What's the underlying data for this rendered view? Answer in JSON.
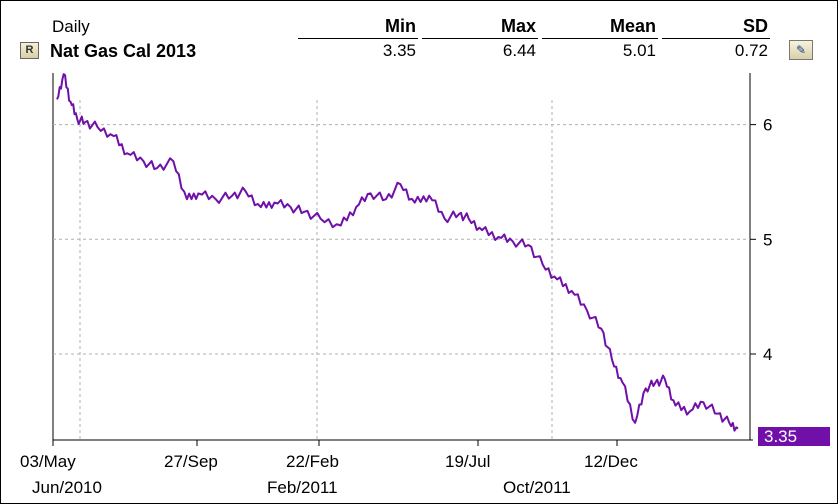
{
  "header": {
    "period": "Daily",
    "series_name": "Nat Gas Cal 2013",
    "r_button": "R",
    "stats": {
      "min_label": "Min",
      "min_value": "3.35",
      "max_label": "Max",
      "max_value": "6.44",
      "mean_label": "Mean",
      "mean_value": "5.01",
      "sd_label": "SD",
      "sd_value": "0.72"
    }
  },
  "colors": {
    "line": "#7010a8",
    "grid": "#b0b0b0",
    "last_value_bg": "#7010a8"
  },
  "last_value": "3.35",
  "chart_data": {
    "type": "line",
    "title": "Nat Gas Cal 2013",
    "x_tick_labels": [
      "03/May",
      "27/Sep",
      "22/Feb",
      "19/Jul",
      "12/Dec"
    ],
    "x_secondary_labels": [
      "Jun/2010",
      "Feb/2011",
      "Oct/2011"
    ],
    "y_ticks": [
      4,
      5,
      6
    ],
    "ylim": [
      3.25,
      6.45
    ],
    "grid": true,
    "series": [
      {
        "x": [
          "2010-05-03",
          "2010-05-10",
          "2010-05-17",
          "2010-05-24",
          "2010-06-01",
          "2010-06-14",
          "2010-07-01",
          "2010-07-15",
          "2010-08-01",
          "2010-08-15",
          "2010-09-01",
          "2010-09-15",
          "2010-09-27",
          "2010-10-15",
          "2010-11-01",
          "2010-11-15",
          "2010-12-01",
          "2010-12-15",
          "2011-01-01",
          "2011-01-15",
          "2011-02-01",
          "2011-02-22",
          "2011-03-10",
          "2011-03-25",
          "2011-04-10",
          "2011-04-25",
          "2011-05-10",
          "2011-05-25",
          "2011-06-10",
          "2011-06-25",
          "2011-07-05",
          "2011-07-19",
          "2011-08-05",
          "2011-08-20",
          "2011-09-05",
          "2011-09-20",
          "2011-10-05",
          "2011-10-20",
          "2011-11-05",
          "2011-11-20",
          "2011-12-01",
          "2011-12-12",
          "2011-12-25",
          "2012-01-05",
          "2012-01-15",
          "2012-01-25",
          "2012-02-05",
          "2012-02-20",
          "2012-03-05",
          "2012-03-20",
          "2012-04-01",
          "2012-04-10"
        ],
        "values": [
          6.22,
          6.44,
          6.2,
          6.05,
          6.02,
          5.98,
          5.9,
          5.75,
          5.68,
          5.62,
          5.68,
          5.35,
          5.4,
          5.35,
          5.38,
          5.42,
          5.28,
          5.32,
          5.28,
          5.24,
          5.18,
          5.12,
          5.28,
          5.4,
          5.35,
          5.48,
          5.32,
          5.38,
          5.18,
          5.22,
          5.18,
          5.08,
          5.02,
          4.98,
          4.95,
          4.78,
          4.65,
          4.55,
          4.38,
          4.22,
          3.95,
          3.75,
          3.4,
          3.7,
          3.75,
          3.78,
          3.55,
          3.5,
          3.58,
          3.48,
          3.4,
          3.35
        ]
      }
    ]
  }
}
